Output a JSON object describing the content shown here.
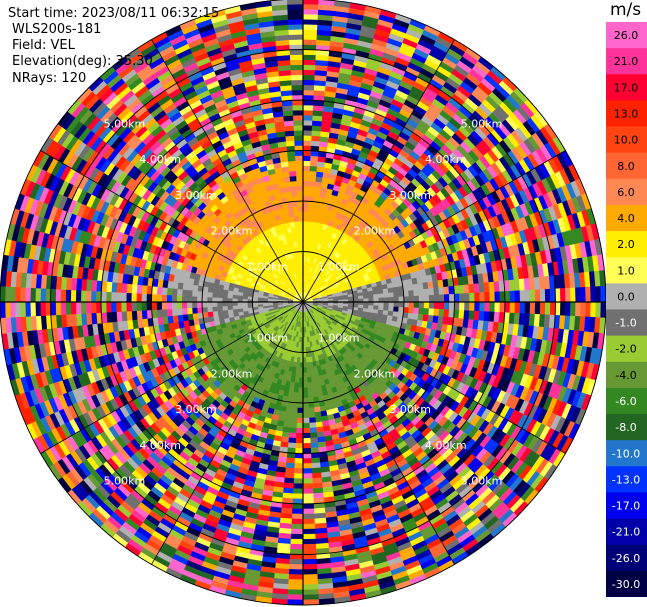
{
  "header": {
    "start_time": "Start time: 2023/08/11 06:32:15",
    "instrument": "WLS200s-181",
    "field": "Field: VEL",
    "elevation": "Elevation(deg): 35.30",
    "nrays": "NRays: 120"
  },
  "colorbar": {
    "unit": "m/s",
    "ticks": [
      "26.0",
      "21.0",
      "17.0",
      "13.0",
      "10.0",
      "8.0",
      "6.0",
      "4.0",
      "2.0",
      "1.0",
      "0.0",
      "-1.0",
      "-2.0",
      "-4.0",
      "-6.0",
      "-8.0",
      "-10.0",
      "-13.0",
      "-17.0",
      "-21.0",
      "-26.0",
      "-30.0"
    ],
    "colors": [
      "#ff66cc",
      "#ff3399",
      "#ff0033",
      "#ff2200",
      "#ff4411",
      "#ff6633",
      "#ff8855",
      "#ffaa00",
      "#ffee00",
      "#ffff55",
      "#b0b0b0",
      "#707070",
      "#99cc33",
      "#669933",
      "#338822",
      "#226622",
      "#2277cc",
      "#0033ff",
      "#0000ee",
      "#0000aa",
      "#000077",
      "#000044"
    ]
  },
  "chart_data": {
    "type": "ppi",
    "field": "VEL",
    "unit": "m/s",
    "nrays": 120,
    "elevation_deg": 35.3,
    "range_ring_labels": [
      "1.00km",
      "2.00km",
      "3.00km",
      "4.00km",
      "5.00km"
    ],
    "range_rings_km": [
      1,
      2,
      3,
      4,
      5,
      6
    ],
    "max_range_km": 6,
    "spoke_step_deg": 30,
    "vmin": -30,
    "vmax": 30
  }
}
